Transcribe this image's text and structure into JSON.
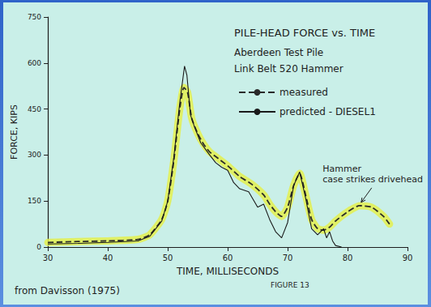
{
  "chart_data": {
    "type": "line",
    "title": "PILE-HEAD FORCE vs. TIME",
    "subtitle": [
      "Aberdeen Test Pile",
      "Link Belt 520 Hammer"
    ],
    "xlabel": "TIME, MILLISECONDS",
    "ylabel": "FORCE, KIPS",
    "xlim": [
      30,
      90
    ],
    "xticks": [
      30,
      40,
      50,
      60,
      70,
      80,
      90
    ],
    "ylim": [
      0,
      750
    ],
    "yticks": [
      0,
      150,
      300,
      450,
      600,
      750
    ],
    "grid": false,
    "legend": "upper right",
    "series": [
      {
        "name": "measured",
        "color": "#2a2a2a",
        "line_style": "dashed",
        "x": [
          30,
          35,
          40,
          45,
          47,
          49,
          50,
          51,
          52,
          52.7,
          53.3,
          54,
          55,
          56,
          57,
          58,
          60,
          62,
          64,
          66,
          67,
          68,
          69,
          70,
          71,
          72,
          73,
          74,
          75,
          76,
          77,
          78,
          80,
          82,
          84,
          86,
          87
        ],
        "values": [
          15,
          18,
          20,
          25,
          40,
          90,
          150,
          280,
          450,
          520,
          505,
          420,
          370,
          335,
          310,
          295,
          265,
          230,
          205,
          170,
          140,
          115,
          100,
          130,
          200,
          240,
          170,
          90,
          60,
          55,
          65,
          85,
          115,
          135,
          130,
          100,
          75
        ]
      },
      {
        "name": "predicted - DIESEL1",
        "color": "#1a1a1a",
        "line_style": "solid",
        "x": [
          30,
          35,
          40,
          45,
          47,
          49,
          50,
          51,
          52,
          52.8,
          53.2,
          53.8,
          54.5,
          55.5,
          57,
          58,
          59,
          60,
          61,
          62,
          63.5,
          65,
          66,
          67,
          68,
          69,
          70,
          71,
          72,
          73,
          74,
          75,
          76,
          76.5,
          77,
          77.5,
          78,
          79
        ],
        "values": [
          10,
          12,
          15,
          20,
          35,
          85,
          150,
          290,
          470,
          590,
          560,
          430,
          390,
          340,
          300,
          275,
          260,
          250,
          210,
          190,
          180,
          130,
          140,
          90,
          50,
          30,
          80,
          200,
          245,
          160,
          60,
          40,
          60,
          30,
          50,
          20,
          5,
          0
        ]
      }
    ],
    "annotations": [
      {
        "text": "Hammer case strikes drivehead",
        "x": 82,
        "y": 135
      }
    ],
    "source": "from Davisson (1975)",
    "figure": "FIGURE 13"
  }
}
